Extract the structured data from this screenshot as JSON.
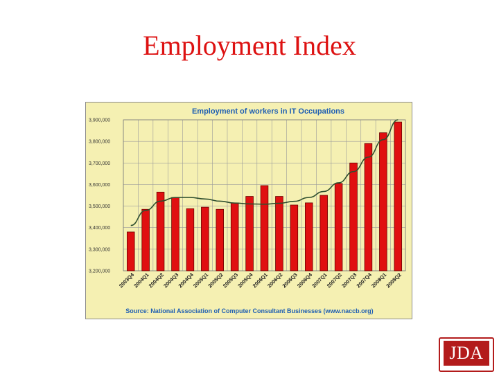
{
  "slide": {
    "title": "Employment Index",
    "logo_text": "JDA"
  },
  "colors": {
    "title": "#dd1111",
    "chart_background": "#f5f0b2",
    "bar_fill": "#e01010",
    "bar_stroke": "#6a0000",
    "trend_line": "#2f4f2f",
    "chart_title": "#1f5fb3",
    "logo": "#b31b1b"
  },
  "chart_data": {
    "type": "bar",
    "title": "Employment of workers in IT Occupations",
    "source": "Source: National Association of Computer Consultant Businesses (www.naccb.org)",
    "categories": [
      "2003Q4",
      "2004Q1",
      "2004Q2",
      "2004Q3",
      "2004Q4",
      "2005Q1",
      "2005Q2",
      "2005Q3",
      "2005Q4",
      "2006Q1",
      "2006Q2",
      "2006Q3",
      "2006Q4",
      "2007Q1",
      "2007Q2",
      "2007Q3",
      "2007Q4",
      "2008Q1",
      "2008Q2"
    ],
    "values": [
      3380000,
      3485000,
      3565000,
      3540000,
      3488000,
      3495000,
      3485000,
      3515000,
      3545000,
      3595000,
      3545000,
      3505000,
      3515000,
      3550000,
      3605000,
      3700000,
      3790000,
      3840000,
      3890000
    ],
    "trend_values": [
      3410000,
      3480000,
      3523000,
      3540000,
      3540000,
      3533000,
      3523000,
      3514000,
      3510000,
      3509000,
      3513000,
      3522000,
      3540000,
      3568000,
      3608000,
      3660000,
      3727000,
      3808000,
      3900000
    ],
    "yticks": [
      {
        "value": 3200000,
        "label": "3,200,000"
      },
      {
        "value": 3300000,
        "label": "3,300,000"
      },
      {
        "value": 3400000,
        "label": "3,400,000"
      },
      {
        "value": 3500000,
        "label": "3,500,000"
      },
      {
        "value": 3600000,
        "label": "3,600,000"
      },
      {
        "value": 3700000,
        "label": "3,700,000"
      },
      {
        "value": 3800000,
        "label": "3,800,000"
      },
      {
        "value": 3900000,
        "label": "3,900,000"
      }
    ],
    "ylim": [
      3200000,
      3900000
    ],
    "xlabel": "",
    "ylabel": "",
    "grid": true,
    "legend": "none"
  }
}
